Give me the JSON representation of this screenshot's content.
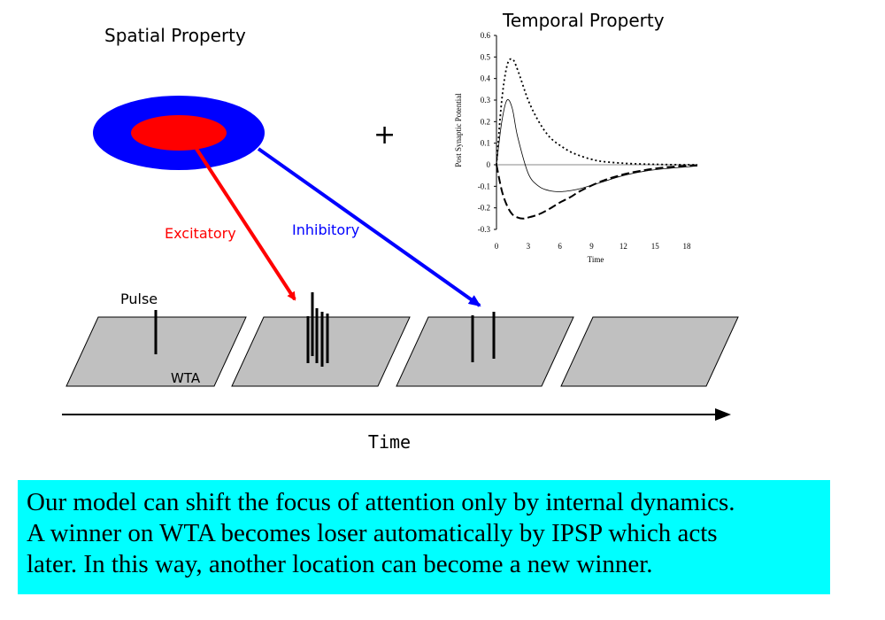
{
  "labels": {
    "spatial_title": "Spatial Property",
    "temporal_title": "Temporal Property",
    "plus": "+",
    "excitatory": "Excitatory",
    "inhibitory": "Inhibitory",
    "pulse": "Pulse",
    "wta": "WTA",
    "time_axis": "Time"
  },
  "colors": {
    "excitatory": "#ff0000",
    "inhibitory": "#0000ff",
    "panel_fill": "#c0c0c0",
    "caption_bg": "#00ffff"
  },
  "caption": [
    "Our model can shift the focus of attention only by internal dynamics.",
    " A winner on WTA becomes loser automatically by IPSP which acts",
    "  later. In this way, another location can become a new winner."
  ],
  "chart_data": {
    "type": "line",
    "title": "Temporal Property",
    "xlabel": "Time",
    "ylabel": "Post Synaptic Potential",
    "xlim": [
      0,
      19
    ],
    "ylim": [
      -0.3,
      0.6
    ],
    "x_ticks": [
      0,
      3,
      6,
      9,
      12,
      15,
      18
    ],
    "y_ticks": [
      -0.3,
      -0.2,
      -0.1,
      0,
      0.1,
      0.2,
      0.3,
      0.4,
      0.5,
      0.6
    ],
    "grid": false,
    "zero_line": true,
    "series": [
      {
        "style": "dotted",
        "x": [
          0,
          0.5,
          1,
          1.5,
          2,
          3,
          4,
          5,
          6,
          7,
          8,
          9,
          10,
          12,
          14,
          16,
          18,
          19
        ],
        "y": [
          0,
          0.3,
          0.46,
          0.49,
          0.44,
          0.3,
          0.2,
          0.13,
          0.09,
          0.06,
          0.04,
          0.025,
          0.015,
          0.007,
          0.003,
          0.001,
          0,
          0
        ]
      },
      {
        "style": "solid",
        "x": [
          0,
          0.5,
          1,
          1.5,
          2,
          3,
          4,
          5,
          6,
          7,
          8,
          10,
          12,
          14,
          16,
          18,
          19
        ],
        "y": [
          0,
          0.2,
          0.3,
          0.26,
          0.13,
          -0.04,
          -0.1,
          -0.12,
          -0.125,
          -0.12,
          -0.11,
          -0.08,
          -0.05,
          -0.03,
          -0.018,
          -0.01,
          -0.006
        ]
      },
      {
        "style": "dashed",
        "x": [
          0,
          0.5,
          1,
          1.5,
          2,
          2.5,
          3,
          4,
          5,
          6,
          7,
          8,
          10,
          12,
          14,
          16,
          18,
          19
        ],
        "y": [
          0,
          -0.12,
          -0.19,
          -0.23,
          -0.245,
          -0.25,
          -0.245,
          -0.23,
          -0.205,
          -0.175,
          -0.15,
          -0.12,
          -0.075,
          -0.045,
          -0.025,
          -0.012,
          -0.005,
          -0.002
        ]
      }
    ]
  }
}
